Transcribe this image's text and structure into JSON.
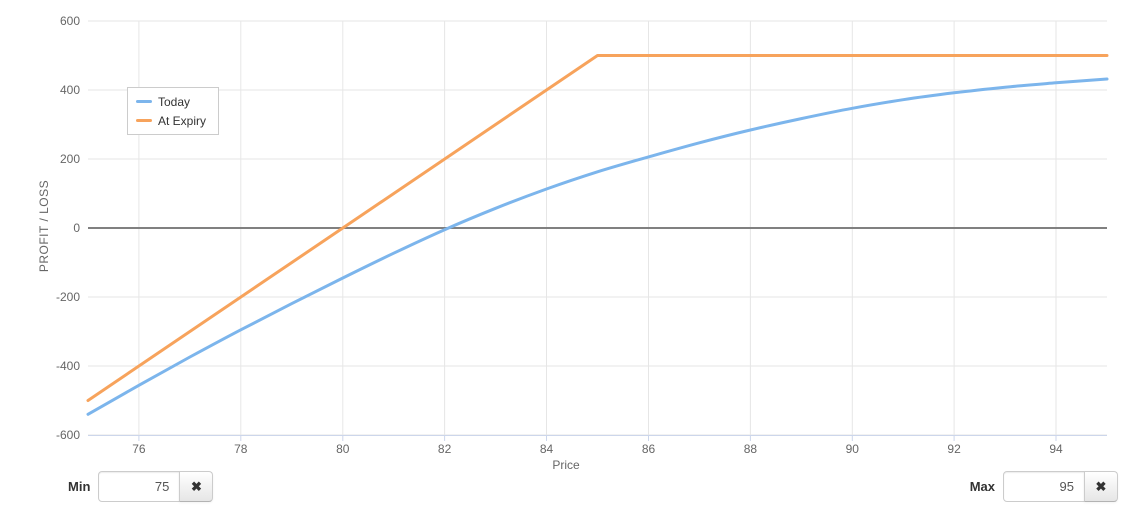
{
  "chart_data": {
    "type": "line",
    "title": "",
    "xlabel": "Price",
    "ylabel": "PROFIT / LOSS",
    "xlim": [
      75,
      95
    ],
    "ylim": [
      -600,
      600
    ],
    "x_ticks": [
      76,
      78,
      80,
      82,
      84,
      86,
      88,
      90,
      92,
      94
    ],
    "y_ticks": [
      -600,
      -400,
      -200,
      0,
      200,
      400,
      600
    ],
    "grid": true,
    "zero_line": 0,
    "legend_position": "top-left-inside",
    "series": [
      {
        "name": "Today",
        "color": "#7cb5ec",
        "smooth": true,
        "x": [
          75,
          76,
          77,
          78,
          79,
          80,
          81,
          82,
          83,
          84,
          85,
          86,
          87,
          88,
          89,
          90,
          91,
          92,
          93,
          94,
          95
        ],
        "values": [
          -540,
          -456,
          -374,
          -295,
          -219,
          -145,
          -73,
          -5,
          57,
          113,
          163,
          206,
          247,
          284,
          317,
          347,
          372,
          392,
          408,
          421,
          432
        ]
      },
      {
        "name": "At Expiry",
        "color": "#f7a35c",
        "smooth": false,
        "x": [
          75,
          80,
          85,
          95
        ],
        "values": [
          -500,
          0,
          500,
          500
        ]
      }
    ]
  },
  "styles": {
    "grid_color": "#e6e6e6",
    "zero_line_color": "#808080",
    "axis_line_color": "#ccd6eb",
    "tick_label_color": "#666666",
    "axis_title_color": "#666666",
    "legend_border_color": "#cccccc"
  },
  "controls": {
    "min": {
      "label": "Min",
      "value": "75",
      "clear_icon": "✖"
    },
    "max": {
      "label": "Max",
      "value": "95",
      "clear_icon": "✖"
    }
  }
}
